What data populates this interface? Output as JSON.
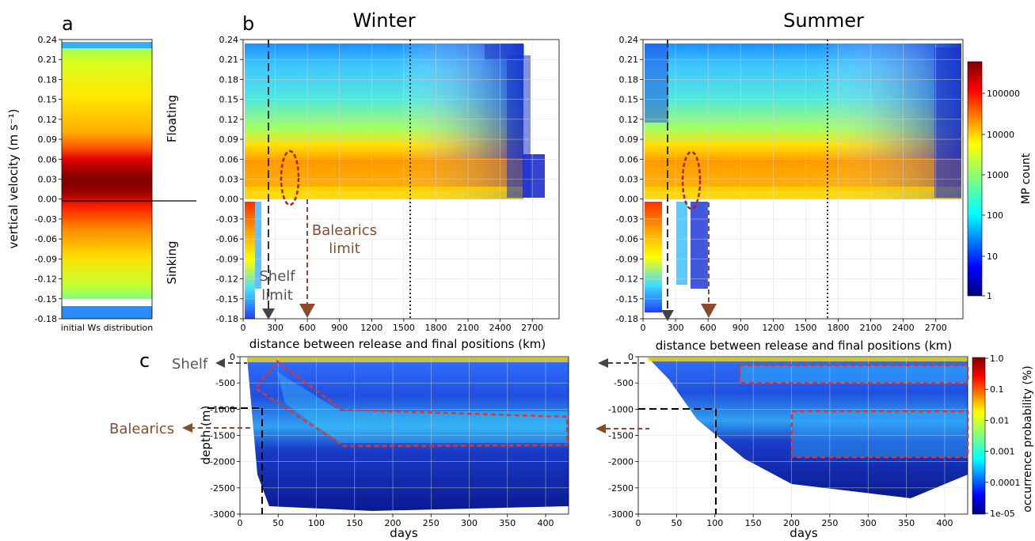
{
  "colors": {
    "brown": "#8B4A2B",
    "gray": "#555555",
    "red_dash": "#e0362a"
  },
  "chart_data": [
    {
      "id": "a",
      "type": "heatmap",
      "panel_label": "a",
      "ylabel": "vertical velocity (m s⁻¹)",
      "xlabel": "initial Ws distribution",
      "yticks": [
        "0.24",
        "0.21",
        "0.18",
        "0.15",
        "0.12",
        "0.09",
        "0.06",
        "0.03",
        "0.00",
        "-0.03",
        "-0.06",
        "-0.09",
        "-0.12",
        "-0.15",
        "-0.18"
      ],
      "ylim": [
        -0.18,
        0.24
      ],
      "region_labels": [
        "Floating",
        "Sinking"
      ],
      "description_values": {
        "peak_velocity_range": [
          -0.03,
          0.06
        ]
      }
    },
    {
      "id": "b-winter",
      "type": "heatmap",
      "panel_label": "b",
      "title": "Winter",
      "xlabel": "distance between release and final positions (km)",
      "xticks": [
        "0",
        "300",
        "600",
        "900",
        "1200",
        "1500",
        "1800",
        "2100",
        "2400",
        "2700"
      ],
      "yticks": [
        "0.24",
        "0.21",
        "0.18",
        "0.15",
        "0.12",
        "0.09",
        "0.06",
        "0.03",
        "0.00",
        "-0.03",
        "-0.06",
        "-0.09",
        "-0.12",
        "-0.15",
        "-0.18"
      ],
      "xlim": [
        0,
        2950
      ],
      "ylim": [
        -0.18,
        0.24
      ],
      "annotations": {
        "shelf": "Shelf\nlimit",
        "balearics": "Balearics\nlimit"
      },
      "shelf_limit_km": 240,
      "balearics_limit_km": 600,
      "dotted_line_km": 1560,
      "floating_extent_km": 2600,
      "sinking_extent_km": 100,
      "highlight_ellipse": {
        "x_km": 430,
        "y": 0.03
      }
    },
    {
      "id": "b-summer",
      "type": "heatmap",
      "title": "Summer",
      "xlabel": "distance between release and final positions (km)",
      "xticks": [
        "0",
        "300",
        "600",
        "900",
        "1200",
        "1500",
        "1800",
        "2100",
        "2400",
        "2700"
      ],
      "yticks": [
        "0.24",
        "0.21",
        "0.18",
        "0.15",
        "0.12",
        "0.09",
        "0.06",
        "0.03",
        "0.00",
        "-0.03",
        "-0.06",
        "-0.09",
        "-0.12",
        "-0.15",
        "-0.18"
      ],
      "xlim": [
        0,
        2950
      ],
      "ylim": [
        -0.18,
        0.24
      ],
      "shelf_limit_km": 240,
      "balearics_limit_km": 600,
      "dotted_line_km": 1710,
      "floating_extent_km": 2950,
      "sinking_extent_km": 600,
      "highlight_ellipse": {
        "x_km": 430,
        "y": 0.03
      },
      "colorbar": {
        "label": "MP count",
        "ticks": [
          "100000",
          "10000",
          "1000",
          "100",
          "10",
          "1"
        ],
        "scale": "log"
      }
    },
    {
      "id": "c-winter",
      "type": "heatmap",
      "panel_label": "c",
      "xlabel": "days",
      "ylabel": "depth (m)",
      "xticks": [
        "0",
        "50",
        "100",
        "150",
        "200",
        "250",
        "300",
        "350",
        "400"
      ],
      "yticks": [
        "0",
        "-500",
        "-1000",
        "-1500",
        "-2000",
        "-2500",
        "-3000"
      ],
      "xlim": [
        0,
        430
      ],
      "ylim": [
        -3000,
        0
      ],
      "annotations": {
        "shelf": "Shelf",
        "balearics": "Balearics"
      },
      "shelf_depth_m": -1000,
      "shelf_day": 30
    },
    {
      "id": "c-summer",
      "type": "heatmap",
      "xlabel": "days",
      "xticks": [
        "0",
        "50",
        "100",
        "150",
        "200",
        "250",
        "300",
        "350",
        "400"
      ],
      "yticks": [
        "0",
        "-500",
        "-1000",
        "-1500",
        "-2000",
        "-2500",
        "-3000"
      ],
      "xlim": [
        0,
        430
      ],
      "ylim": [
        -3000,
        0
      ],
      "shelf_depth_m": -1000,
      "shelf_day": 100,
      "colorbar": {
        "label": "occurrence probability (%)",
        "ticks": [
          "1.0",
          "0.1",
          "0.01",
          "0.001",
          "0.0001",
          "1e-05"
        ],
        "scale": "log"
      }
    }
  ]
}
